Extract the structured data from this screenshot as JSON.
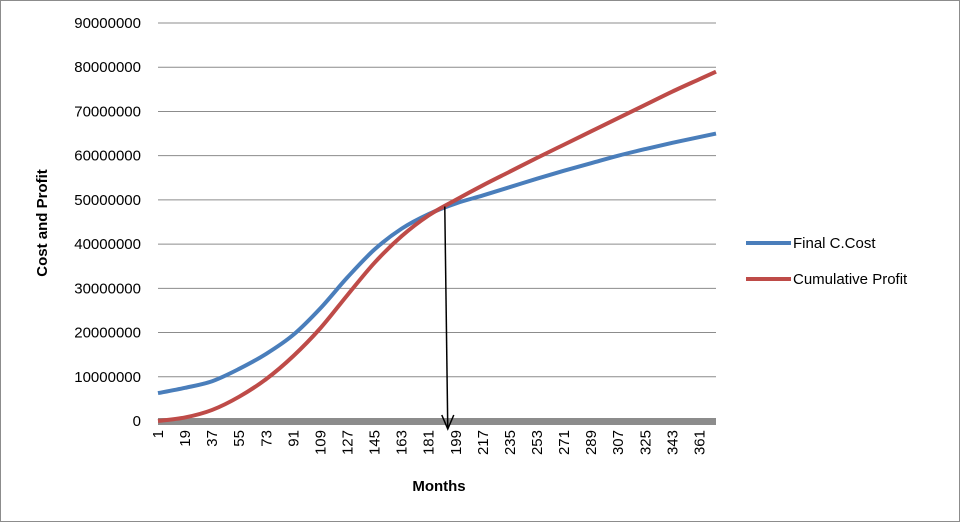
{
  "chart_data": {
    "type": "line",
    "xlabel": "Months",
    "ylabel": "Cost and Profit",
    "xlim": [
      1,
      372
    ],
    "ylim": [
      0,
      90000000
    ],
    "x_tick_labels": [
      "1",
      "19",
      "37",
      "55",
      "73",
      "91",
      "109",
      "127",
      "145",
      "163",
      "181",
      "199",
      "217",
      "235",
      "253",
      "271",
      "289",
      "307",
      "325",
      "343",
      "361"
    ],
    "y_tick_labels": [
      "0",
      "10000000",
      "20000000",
      "30000000",
      "40000000",
      "50000000",
      "60000000",
      "70000000",
      "80000000",
      "90000000"
    ],
    "grid": "horizontal",
    "legend_position": "right",
    "colors": {
      "final_cost": "#4a7ebb",
      "cumulative_profit": "#be4b48",
      "arrow": "#000000",
      "x_axis": "#8c8c8c",
      "grid": "#8c8c8c"
    },
    "annotation": {
      "type": "arrow",
      "x": 193,
      "y_from": 48500000,
      "y_to": 0
    },
    "series": [
      {
        "name": "Final C.Cost",
        "key": "final_cost",
        "x": [
          1,
          19,
          37,
          55,
          73,
          91,
          109,
          127,
          145,
          163,
          181,
          199,
          217,
          235,
          253,
          271,
          289,
          307,
          325,
          343,
          361,
          372
        ],
        "values": [
          6300000,
          7500000,
          9000000,
          11800000,
          15200000,
          19500000,
          25500000,
          32500000,
          38800000,
          43500000,
          46800000,
          49200000,
          51000000,
          52900000,
          54800000,
          56600000,
          58300000,
          60000000,
          61500000,
          62900000,
          64200000,
          65000000
        ]
      },
      {
        "name": "Cumulative Profit",
        "key": "cumulative_profit",
        "x": [
          1,
          19,
          37,
          55,
          73,
          91,
          109,
          127,
          145,
          163,
          181,
          199,
          217,
          235,
          253,
          271,
          289,
          307,
          325,
          343,
          361,
          372
        ],
        "values": [
          0,
          800000,
          2500000,
          5500000,
          9500000,
          14700000,
          21000000,
          28500000,
          35800000,
          41800000,
          46500000,
          50000000,
          53300000,
          56400000,
          59500000,
          62500000,
          65500000,
          68500000,
          71500000,
          74500000,
          77300000,
          79000000
        ]
      }
    ]
  }
}
